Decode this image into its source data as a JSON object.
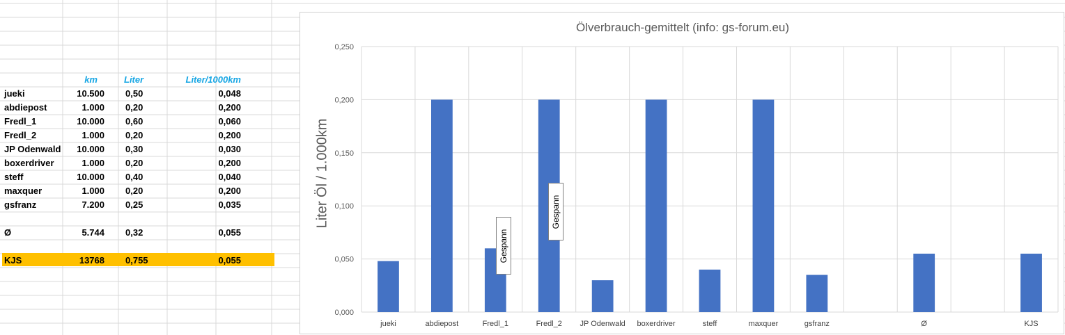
{
  "table": {
    "headers": {
      "km": "km",
      "liter": "Liter",
      "ratio": "Liter/1000km"
    },
    "rows": [
      {
        "name": "jueki",
        "km": "10.500",
        "liter": "0,50",
        "ratio": "0,048"
      },
      {
        "name": "abdiepost",
        "km": "1.000",
        "liter": "0,20",
        "ratio": "0,200"
      },
      {
        "name": "Fredl_1",
        "km": "10.000",
        "liter": "0,60",
        "ratio": "0,060"
      },
      {
        "name": "Fredl_2",
        "km": "1.000",
        "liter": "0,20",
        "ratio": "0,200"
      },
      {
        "name": "JP Odenwald",
        "km": "10.000",
        "liter": "0,30",
        "ratio": "0,030"
      },
      {
        "name": "boxerdriver",
        "km": "1.000",
        "liter": "0,20",
        "ratio": "0,200"
      },
      {
        "name": "steff",
        "km": "10.000",
        "liter": "0,40",
        "ratio": "0,040"
      },
      {
        "name": "maxquer",
        "km": "1.000",
        "liter": "0,20",
        "ratio": "0,200"
      },
      {
        "name": "gsfranz",
        "km": "7.200",
        "liter": "0,25",
        "ratio": "0,035"
      }
    ],
    "avg": {
      "name": "Ø",
      "km": "5.744",
      "liter": "0,32",
      "ratio": "0,055"
    },
    "kjs": {
      "name": "KJS",
      "km": "13768",
      "liter": "0,755",
      "ratio": "0,055"
    },
    "kjs_highlight": "#ffc000",
    "header_color": "#16a6e4"
  },
  "chart_data": {
    "type": "bar",
    "title": "Ölverbrauch-gemittelt (info: gs-forum.eu)",
    "ylabel": "Liter Öl / 1.000km",
    "xlabel": "",
    "categories": [
      "jueki",
      "abdiepost",
      "Fredl_1",
      "Fredl_2",
      "JP Odenwald",
      "boxerdriver",
      "steff",
      "maxquer",
      "gsfranz",
      "",
      "Ø",
      "",
      "KJS"
    ],
    "values": [
      0.048,
      0.2,
      0.06,
      0.2,
      0.03,
      0.2,
      0.04,
      0.2,
      0.035,
      null,
      0.055,
      null,
      0.055
    ],
    "ylim": [
      0,
      0.25
    ],
    "yticks": [
      "0,000",
      "0,050",
      "0,100",
      "0,150",
      "0,200",
      "0,250"
    ],
    "grid": true,
    "bar_color": "#4472c4",
    "annotations": [
      "Gespann",
      "Gespann"
    ]
  }
}
